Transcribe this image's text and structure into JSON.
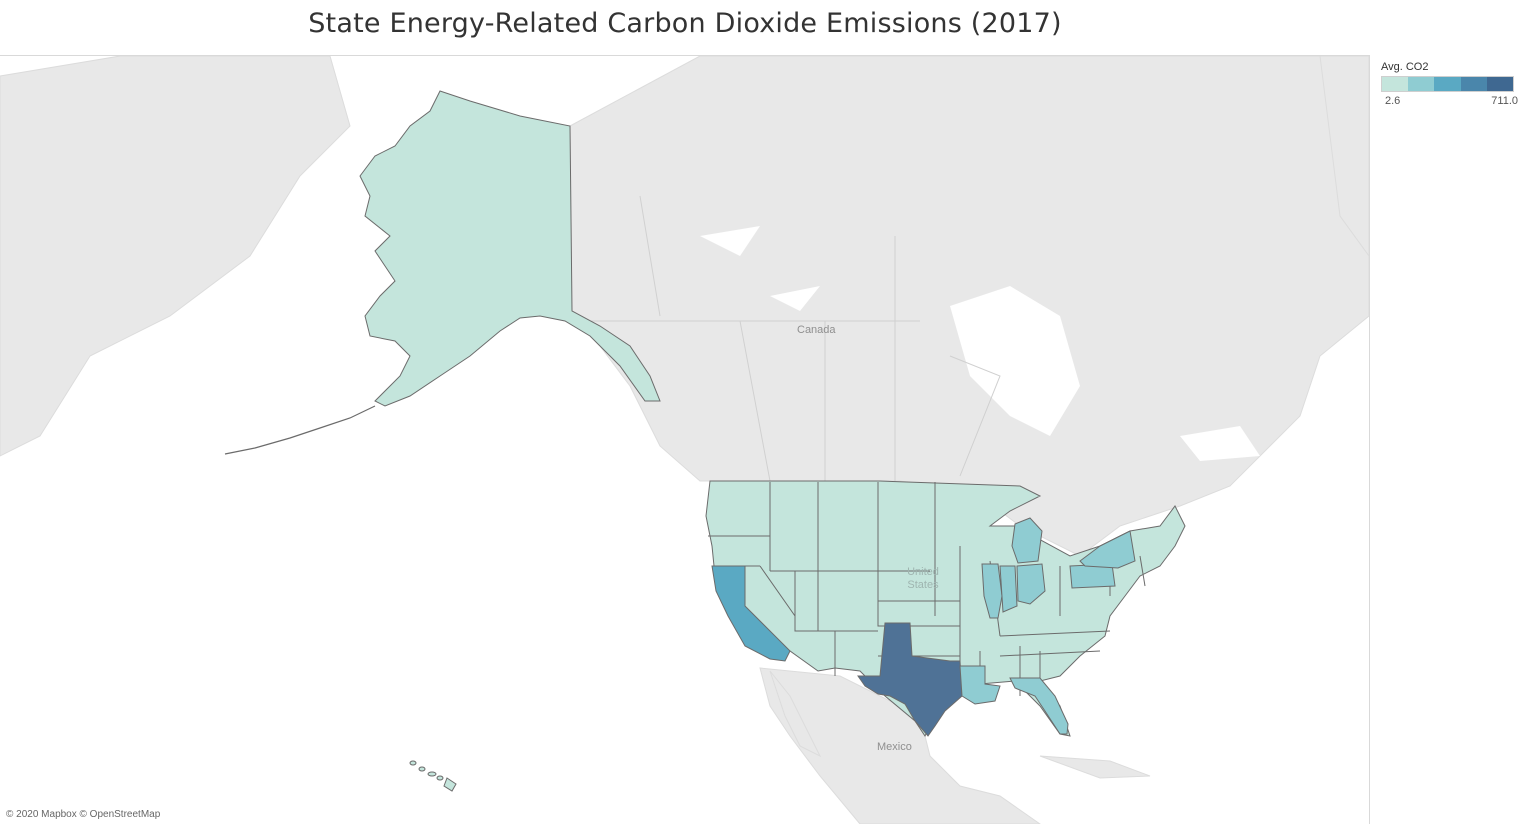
{
  "title": "State Energy-Related Carbon Dioxide Emissions (2017)",
  "legend": {
    "title": "Avg. CO2",
    "min_label": "2.6",
    "max_label": "711.0",
    "min": 2.6,
    "max": 711.0,
    "colors": [
      "#c4e5dc",
      "#8fccd2",
      "#5aa9c3",
      "#4a86ab",
      "#3f6891"
    ]
  },
  "map": {
    "labels": {
      "canada": "Canada",
      "united_states": "United\nStates",
      "mexico": "Mexico"
    },
    "credit": "© 2020 Mapbox © OpenStreetMap",
    "land_color": "#e8e8e8",
    "water_color": "#ffffff",
    "state_colors": {
      "low": "#c4e5dc",
      "mid": "#8fccd2",
      "high": "#5aa9c3",
      "max": "#4f7296"
    },
    "highlighted_states": [
      "Texas",
      "California",
      "Florida",
      "Louisiana",
      "Illinois",
      "Indiana",
      "Ohio",
      "Michigan",
      "Pennsylvania",
      "New York"
    ]
  }
}
